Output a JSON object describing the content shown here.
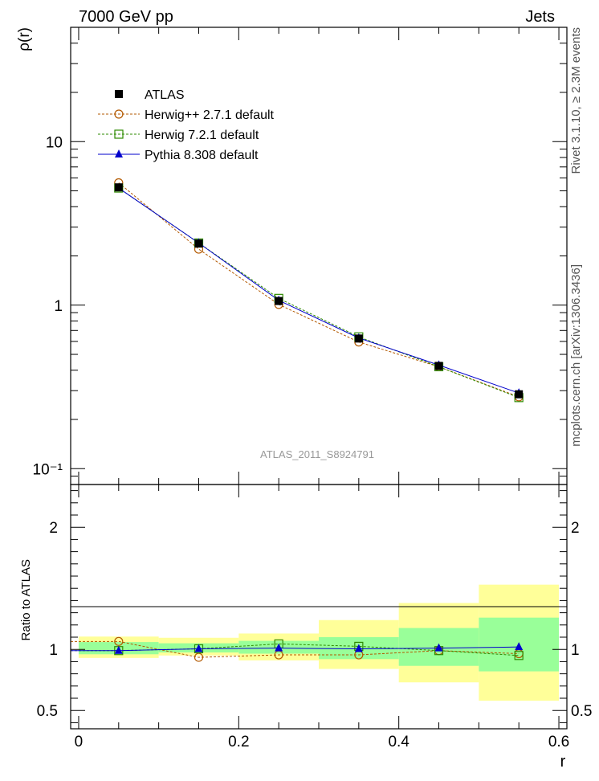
{
  "header": {
    "energy_label": "7000 GeV pp",
    "process_label": "Jets"
  },
  "side_labels": {
    "rivet": "Rivet 3.1.10, ≥ 2.3M events",
    "mcplots": "mcplots.cern.ch [arXiv:1306.3436]"
  },
  "analysis_label": "ATLAS_2011_S8924791",
  "colors": {
    "herwigpp": "#b35900",
    "herwig7": "#2e8b00",
    "pythia": "#0000cc",
    "band_inner": "#99ff99",
    "band_outer": "#ffff99"
  },
  "chart_data": [
    {
      "type": "line",
      "panel": "main",
      "ylabel": "ρ(r)",
      "yscale": "log",
      "ylim": [
        0.08,
        50
      ],
      "xlim": [
        -0.01,
        0.61
      ],
      "y_tick_labels": [
        "10⁻¹",
        "1",
        "10"
      ],
      "x": [
        0.05,
        0.15,
        0.25,
        0.35,
        0.45,
        0.55
      ],
      "legend_position": "top-left",
      "series": [
        {
          "name": "ATLAS",
          "marker": "square-filled",
          "values": [
            5.25,
            2.38,
            1.06,
            0.625,
            0.425,
            0.285
          ]
        },
        {
          "name": "Herwig++ 2.7.1 default",
          "marker": "circle-open",
          "values": [
            5.6,
            2.2,
            1.01,
            0.595,
            0.42,
            0.275
          ]
        },
        {
          "name": "Herwig 7.2.1 default",
          "marker": "square-open",
          "values": [
            5.2,
            2.4,
            1.1,
            0.64,
            0.42,
            0.272
          ]
        },
        {
          "name": "Pythia 8.308 default",
          "marker": "triangle-filled",
          "values": [
            5.2,
            2.4,
            1.07,
            0.63,
            0.43,
            0.29
          ]
        }
      ]
    },
    {
      "type": "line",
      "panel": "ratio",
      "ylabel": "Ratio to ATLAS",
      "xlabel": "r",
      "ylim": [
        0.35,
        2.35
      ],
      "xlim": [
        -0.01,
        0.61
      ],
      "x_tick_labels": [
        "0",
        "0.2",
        "0.4",
        "0.6"
      ],
      "y_tick_labels": [
        "0.5",
        "1",
        "2"
      ],
      "x": [
        0.05,
        0.15,
        0.25,
        0.35,
        0.45,
        0.55
      ],
      "bands": {
        "edges": [
          0.0,
          0.1,
          0.2,
          0.3,
          0.4,
          0.5,
          0.6
        ],
        "inner_lo": [
          0.96,
          0.975,
          0.965,
          0.92,
          0.865,
          0.82
        ],
        "inner_hi": [
          1.06,
          1.05,
          1.07,
          1.1,
          1.175,
          1.26
        ],
        "outer_lo": [
          0.93,
          0.95,
          0.91,
          0.84,
          0.73,
          0.58
        ],
        "outer_hi": [
          1.105,
          1.095,
          1.13,
          1.24,
          1.38,
          1.53
        ]
      },
      "series": [
        {
          "name": "Herwig++ 2.7.1 default",
          "values": [
            1.065,
            0.935,
            0.955,
            0.955,
            0.99,
            0.965
          ]
        },
        {
          "name": "Herwig 7.2.1 default",
          "values": [
            0.99,
            1.005,
            1.045,
            1.025,
            0.99,
            0.95
          ]
        },
        {
          "name": "Pythia 8.308 default",
          "values": [
            0.99,
            1.005,
            1.01,
            1.005,
            1.01,
            1.02
          ]
        }
      ]
    }
  ]
}
